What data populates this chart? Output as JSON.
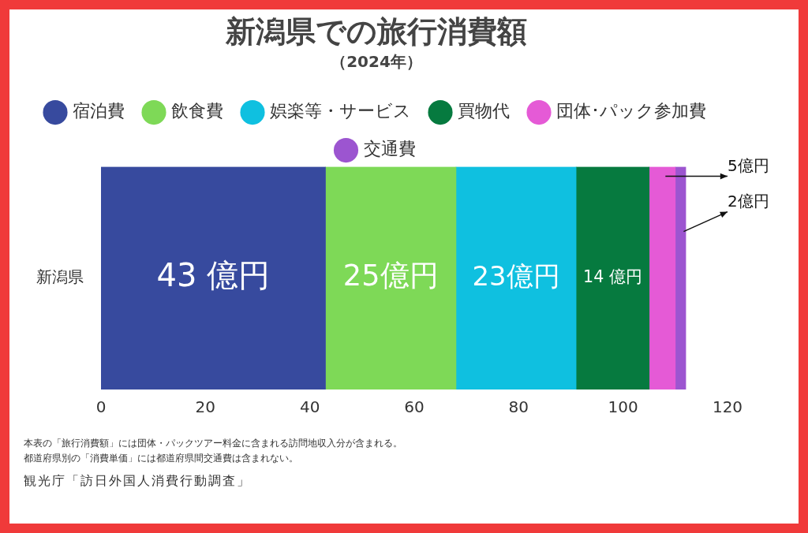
{
  "chart_data": {
    "type": "bar",
    "orientation": "horizontal",
    "stacked": true,
    "title": "新潟県での旅行消費額",
    "subtitle": "（2024年）",
    "categories": [
      "新潟県"
    ],
    "series": [
      {
        "name": "宿泊費",
        "color": "#374a9e",
        "values": [
          43
        ],
        "value_labels": [
          "43 億円"
        ]
      },
      {
        "name": "飲食費",
        "color": "#7ed957",
        "values": [
          25
        ],
        "value_labels": [
          "25億円"
        ]
      },
      {
        "name": "娯楽等・サービス",
        "color": "#0fc0e0",
        "values": [
          23
        ],
        "value_labels": [
          "23億円"
        ]
      },
      {
        "name": "買物代",
        "color": "#067a3f",
        "values": [
          14
        ],
        "value_labels": [
          "14 億円"
        ]
      },
      {
        "name": "団体･パック参加費",
        "color": "#e55ad6",
        "values": [
          5
        ],
        "value_labels": [
          "5億円"
        ]
      },
      {
        "name": "交通費",
        "color": "#9c55d0",
        "values": [
          2
        ],
        "value_labels": [
          "2億円"
        ]
      }
    ],
    "xlim": [
      0,
      120
    ],
    "xticks": [
      0,
      20,
      40,
      60,
      80,
      100,
      120
    ],
    "grid": false,
    "legend": "top",
    "annotations": [
      "本表の「旅行消費額」には団体・パックツアー料金に含まれる訪問地収入分が含まれる。",
      "都道府県別の「消費単価」には都道府県間交通費は含まれない。",
      "観光庁「訪日外国人消費行動調査」"
    ]
  }
}
